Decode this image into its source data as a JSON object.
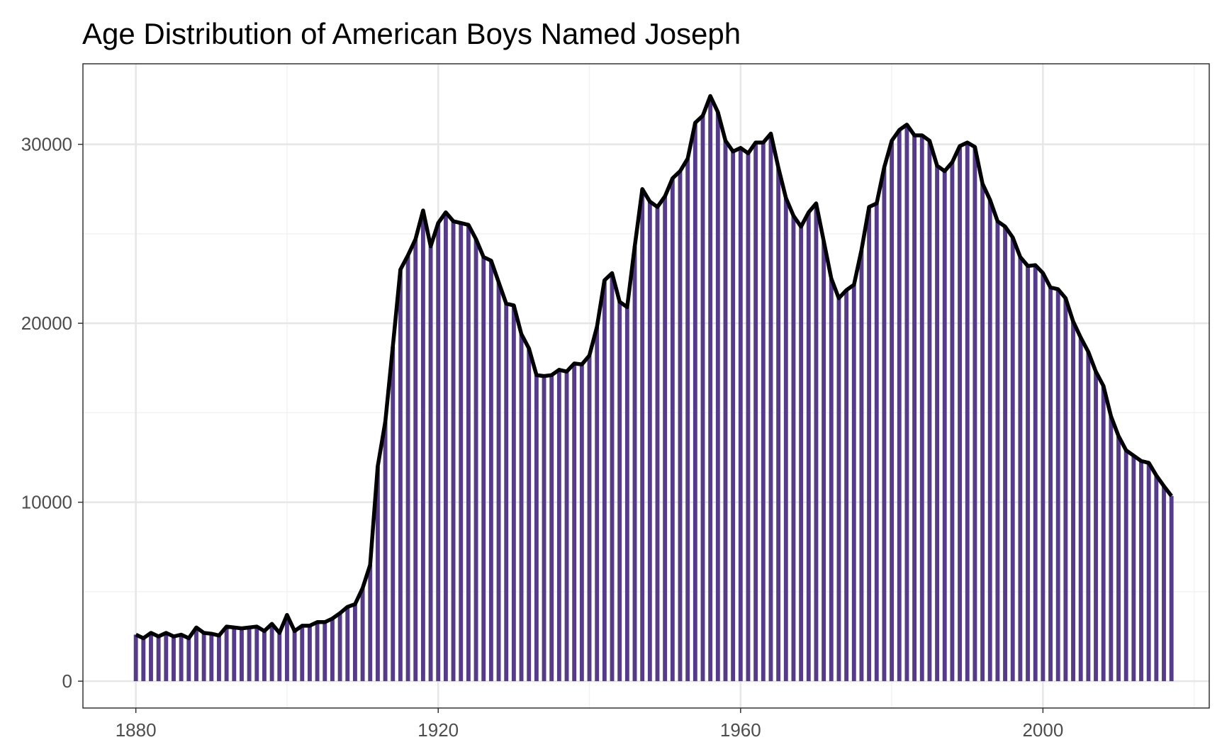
{
  "chart_data": {
    "type": "bar",
    "title": "Age Distribution of American Boys Named Joseph",
    "xlabel": "",
    "ylabel": "",
    "xlim": [
      1873,
      2022
    ],
    "ylim": [
      -1500,
      34500
    ],
    "x_ticks": [
      1880,
      1920,
      1960,
      2000
    ],
    "x_tick_labels": [
      "1880",
      "1920",
      "1960",
      "2000"
    ],
    "y_ticks": [
      0,
      10000,
      20000,
      30000
    ],
    "y_tick_labels": [
      "0",
      "10000",
      "20000",
      "30000"
    ],
    "grid": true,
    "legend": "none",
    "colors": {
      "bar": "#553a8e",
      "line": "#000000",
      "grid_major": "#e6e6e6",
      "grid_minor": "#f2f2f2",
      "panel_border": "#333333"
    },
    "x": [
      1880,
      1881,
      1882,
      1883,
      1884,
      1885,
      1886,
      1887,
      1888,
      1889,
      1890,
      1891,
      1892,
      1893,
      1894,
      1895,
      1896,
      1897,
      1898,
      1899,
      1900,
      1901,
      1902,
      1903,
      1904,
      1905,
      1906,
      1907,
      1908,
      1909,
      1910,
      1911,
      1912,
      1913,
      1914,
      1915,
      1916,
      1917,
      1918,
      1919,
      1920,
      1921,
      1922,
      1923,
      1924,
      1925,
      1926,
      1927,
      1928,
      1929,
      1930,
      1931,
      1932,
      1933,
      1934,
      1935,
      1936,
      1937,
      1938,
      1939,
      1940,
      1941,
      1942,
      1943,
      1944,
      1945,
      1946,
      1947,
      1948,
      1949,
      1950,
      1951,
      1952,
      1953,
      1954,
      1955,
      1956,
      1957,
      1958,
      1959,
      1960,
      1961,
      1962,
      1963,
      1964,
      1965,
      1966,
      1967,
      1968,
      1969,
      1970,
      1971,
      1972,
      1973,
      1974,
      1975,
      1976,
      1977,
      1978,
      1979,
      1980,
      1981,
      1982,
      1983,
      1984,
      1985,
      1986,
      1987,
      1988,
      1989,
      1990,
      1991,
      1992,
      1993,
      1994,
      1995,
      1996,
      1997,
      1998,
      1999,
      2000,
      2001,
      2002,
      2003,
      2004,
      2005,
      2006,
      2007,
      2008,
      2009,
      2010,
      2011,
      2012,
      2013,
      2014,
      2015,
      2016,
      2017
    ],
    "values": [
      2600,
      2400,
      2700,
      2500,
      2700,
      2500,
      2600,
      2400,
      3000,
      2700,
      2650,
      2550,
      3050,
      3000,
      2950,
      3000,
      3050,
      2800,
      3200,
      2700,
      3700,
      2800,
      3100,
      3100,
      3300,
      3300,
      3500,
      3800,
      4150,
      4300,
      5200,
      6500,
      12000,
      14500,
      18700,
      23000,
      23800,
      24700,
      26300,
      24300,
      25600,
      26200,
      25700,
      25600,
      25500,
      24700,
      23700,
      23500,
      22300,
      21100,
      21000,
      19400,
      18600,
      17100,
      17050,
      17100,
      17400,
      17300,
      17750,
      17700,
      18200,
      19800,
      22400,
      22800,
      21200,
      20900,
      24300,
      27500,
      26800,
      26500,
      27100,
      28100,
      28500,
      29200,
      31200,
      31600,
      32700,
      31800,
      30200,
      29600,
      29800,
      29500,
      30100,
      30100,
      30600,
      28700,
      27000,
      26000,
      25400,
      26200,
      26700,
      24600,
      22500,
      21400,
      21850,
      22150,
      24100,
      26500,
      26700,
      28700,
      30200,
      30800,
      31100,
      30500,
      30500,
      30200,
      28800,
      28500,
      29000,
      29900,
      30100,
      29850,
      27800,
      26900,
      25700,
      25400,
      24800,
      23700,
      23200,
      23250,
      22800,
      22000,
      21900,
      21400,
      20100,
      19200,
      18400,
      17300,
      16500,
      14800,
      13700,
      12900,
      12600,
      12300,
      12200,
      11500,
      10900,
      10350
    ]
  }
}
